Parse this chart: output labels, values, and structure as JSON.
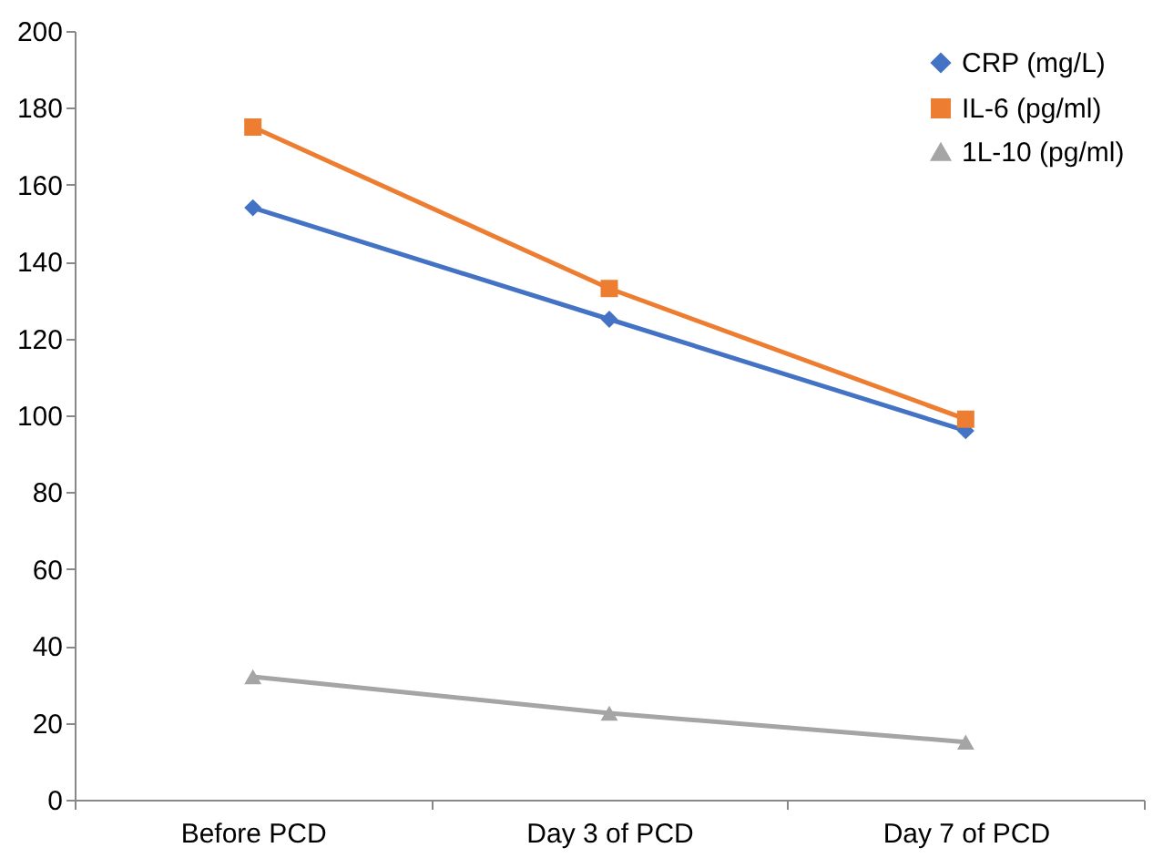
{
  "chart_data": {
    "type": "line",
    "categories": [
      "Before PCD",
      "Day 3 of PCD",
      "Day 7 of PCD"
    ],
    "series": [
      {
        "name": "CRP (mg/L)",
        "color": "#4472c4",
        "marker": "diamond",
        "values": [
          154,
          125,
          96
        ]
      },
      {
        "name": "IL-6 (pg/ml)",
        "color": "#ed7d31",
        "marker": "square",
        "values": [
          175,
          133,
          99
        ]
      },
      {
        "name": "1L-10 (pg/ml)",
        "color": "#a5a5a5",
        "marker": "triangle",
        "values": [
          32,
          22.5,
          15
        ]
      }
    ],
    "ylim": [
      0,
      200
    ],
    "yticks": [
      0,
      20,
      40,
      60,
      80,
      100,
      120,
      140,
      160,
      180,
      200
    ],
    "legend": "top right"
  }
}
